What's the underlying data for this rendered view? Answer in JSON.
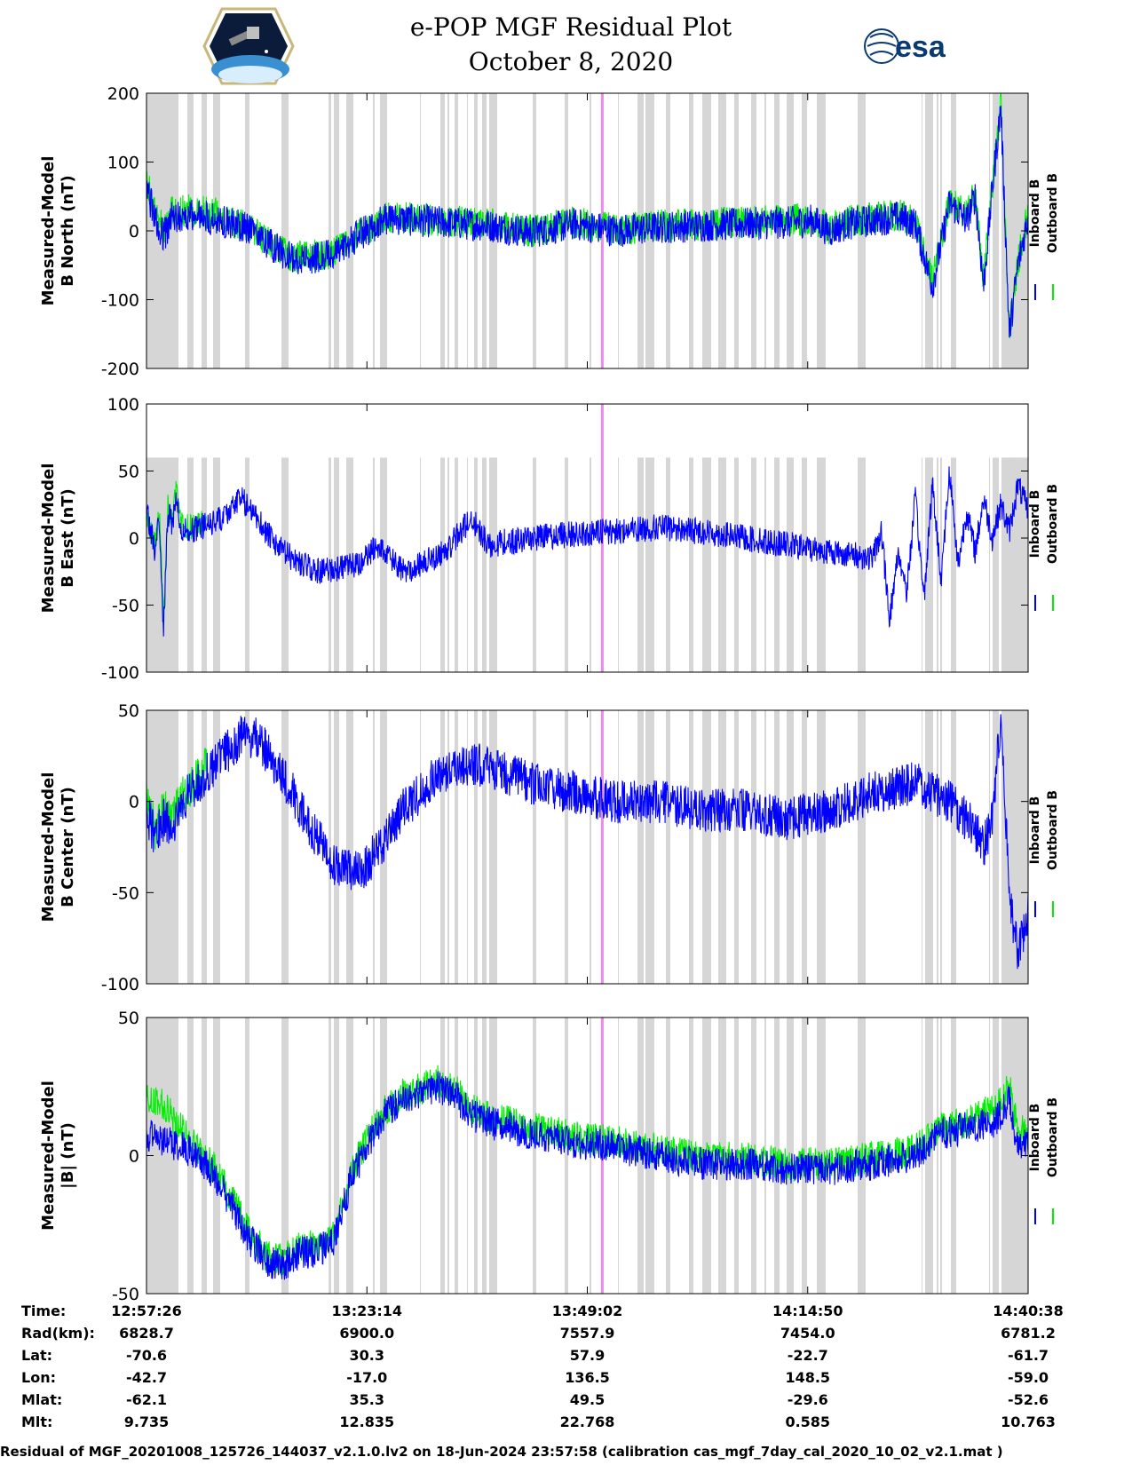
{
  "title": {
    "line1": "e-POP MGF Residual Plot",
    "line2": "October 8, 2020"
  },
  "logos": {
    "left": "cassiope-mission-logo",
    "right_text": "esa"
  },
  "colors": {
    "inboard": "#0000ff",
    "outboard": "#00ee00",
    "shade": "#d6d6d6",
    "marker": "#ee88ee",
    "axis": "#000000"
  },
  "footer": "Residual of MGF_20201008_125726_144037_v2.1.0.lv2 on 18-Jun-2024 23:57:58 (calibration cas_mgf_7day_cal_2020_10_02_v2.1.mat )",
  "info_table": {
    "row_labels": [
      "Time:",
      "Rad(km):",
      "Lat:",
      "Lon:",
      "Mlat:",
      "Mlt:"
    ],
    "columns": [
      [
        "12:57:26",
        "6828.7",
        "-70.6",
        "-42.7",
        "-62.1",
        "9.735"
      ],
      [
        "13:23:14",
        "6900.0",
        "30.3",
        "-17.0",
        "35.3",
        "12.835"
      ],
      [
        "13:49:02",
        "7557.9",
        "57.9",
        "136.5",
        "49.5",
        "22.768"
      ],
      [
        "14:14:50",
        "7454.0",
        "-22.7",
        "148.5",
        "-29.6",
        "0.585"
      ],
      [
        "14:40:38",
        "6781.2",
        "-61.7",
        "-59.0",
        "-52.6",
        "10.763"
      ]
    ]
  },
  "chart_data": [
    {
      "type": "line",
      "ylabel": [
        "Measured-Model",
        "B North (nT)"
      ],
      "ylim": [
        -200,
        200
      ],
      "yticks": [
        200,
        100,
        0,
        -100,
        -200
      ],
      "xlim_min": [
        0,
        103.2
      ],
      "legend": [
        "Inboard B",
        "Outboard B"
      ],
      "series": [
        {
          "name": "Inboard B",
          "amp": 6,
          "x": [
            0,
            1,
            2,
            3,
            5,
            8,
            10,
            12,
            15,
            17,
            20,
            22,
            25,
            28,
            32,
            35,
            40,
            45,
            48,
            50,
            55,
            60,
            65,
            70,
            75,
            78,
            80,
            82,
            85,
            88,
            90,
            92,
            94,
            96,
            97,
            98,
            99,
            100,
            101,
            102,
            103.2
          ],
          "y": [
            60,
            20,
            -10,
            20,
            22,
            18,
            10,
            5,
            -25,
            -40,
            -38,
            -35,
            -5,
            18,
            15,
            12,
            8,
            -2,
            5,
            10,
            0,
            5,
            8,
            10,
            12,
            15,
            0,
            10,
            15,
            20,
            10,
            -80,
            40,
            15,
            50,
            -80,
            60,
            180,
            -150,
            -50,
            20
          ]
        },
        {
          "name": "Outboard B",
          "amp": 6,
          "x": [
            0,
            1,
            2,
            3,
            5,
            8,
            10,
            12,
            15,
            17,
            20,
            22,
            25,
            28,
            32,
            35,
            40,
            45,
            48,
            50,
            55,
            60,
            65,
            70,
            75,
            78,
            80,
            82,
            85,
            88,
            90,
            92,
            94,
            96,
            97,
            98,
            99,
            100,
            101,
            102,
            103.2
          ],
          "y": [
            70,
            30,
            0,
            30,
            30,
            25,
            14,
            7,
            -23,
            -38,
            -36,
            -33,
            -3,
            20,
            17,
            14,
            10,
            0,
            7,
            12,
            2,
            7,
            10,
            12,
            15,
            18,
            3,
            13,
            18,
            23,
            13,
            -75,
            45,
            20,
            55,
            -75,
            65,
            185,
            -145,
            -45,
            25
          ]
        }
      ]
    },
    {
      "type": "line",
      "ylabel": [
        "Measured-Model",
        "B East (nT)"
      ],
      "ylim": [
        -100,
        100
      ],
      "yticks": [
        100,
        50,
        0,
        -50,
        -100
      ],
      "shade_top": 60,
      "legend": [
        "Inboard B",
        "Outboard B"
      ],
      "series": [
        {
          "name": "Inboard B",
          "amp": 5,
          "x": [
            0,
            1,
            1.5,
            2,
            2.5,
            3,
            3.5,
            4,
            5,
            7,
            9,
            11,
            13,
            15,
            17,
            20,
            25,
            27,
            30,
            32,
            35,
            38,
            40,
            45,
            50,
            55,
            60,
            65,
            70,
            75,
            80,
            85,
            86,
            87,
            88,
            89,
            90,
            91,
            92,
            93,
            94,
            95,
            96,
            97,
            98,
            99,
            100,
            101,
            102,
            103.2
          ],
          "y": [
            20,
            -10,
            15,
            -70,
            20,
            10,
            30,
            5,
            5,
            10,
            15,
            30,
            15,
            -5,
            -15,
            -25,
            -20,
            -5,
            -25,
            -20,
            -10,
            15,
            -5,
            0,
            3,
            5,
            8,
            5,
            0,
            -5,
            -10,
            -15,
            5,
            -60,
            -10,
            -40,
            30,
            -45,
            40,
            -30,
            50,
            -20,
            20,
            -10,
            30,
            0,
            25,
            5,
            40,
            20
          ]
        },
        {
          "name": "Outboard B",
          "amp": 5,
          "x": [
            0,
            1,
            1.5,
            2,
            2.5,
            3,
            3.5,
            4,
            5,
            7
          ],
          "y": [
            15,
            -5,
            20,
            -65,
            25,
            15,
            35,
            10,
            8,
            12
          ]
        }
      ]
    },
    {
      "type": "line",
      "ylabel": [
        "Measured-Model",
        "B Center (nT)"
      ],
      "ylim": [
        -100,
        50
      ],
      "yticks": [
        50,
        0,
        -50,
        -100
      ],
      "legend": [
        "Inboard B",
        "Outboard B"
      ],
      "series": [
        {
          "name": "Inboard B",
          "amp": 8,
          "x": [
            0,
            1,
            2,
            3,
            4,
            5,
            7,
            9,
            11,
            13,
            15,
            17,
            20,
            22,
            25,
            28,
            30,
            33,
            36,
            40,
            45,
            50,
            55,
            60,
            65,
            70,
            75,
            80,
            85,
            90,
            92,
            94,
            96,
            97,
            98,
            99,
            100,
            101,
            102,
            103.2
          ],
          "y": [
            -5,
            -20,
            -10,
            -15,
            -5,
            5,
            15,
            25,
            35,
            35,
            20,
            5,
            -20,
            -35,
            -40,
            -20,
            -5,
            10,
            20,
            20,
            10,
            5,
            0,
            0,
            -5,
            -5,
            -10,
            -5,
            5,
            10,
            5,
            0,
            -10,
            -15,
            -25,
            -10,
            45,
            -50,
            -85,
            -60
          ]
        },
        {
          "name": "Outboard B",
          "amp": 8,
          "x": [
            0,
            1,
            2,
            3,
            4,
            5,
            7
          ],
          "y": [
            0,
            -15,
            -5,
            -10,
            0,
            8,
            18
          ]
        }
      ]
    },
    {
      "type": "line",
      "ylabel": [
        "Measured-Model",
        "|B| (nT)"
      ],
      "ylim": [
        -50,
        50
      ],
      "yticks": [
        50,
        0,
        -50
      ],
      "legend": [
        "Inboard B",
        "Outboard B"
      ],
      "series": [
        {
          "name": "Inboard B",
          "amp": 6,
          "x": [
            0,
            2,
            4,
            6,
            8,
            10,
            12,
            14,
            16,
            18,
            20,
            22,
            24,
            26,
            28,
            30,
            32,
            34,
            36,
            38,
            40,
            45,
            50,
            55,
            60,
            65,
            70,
            75,
            80,
            85,
            90,
            93,
            96,
            99,
            100,
            101,
            102,
            103.2
          ],
          "y": [
            8,
            5,
            3,
            0,
            -8,
            -18,
            -30,
            -38,
            -40,
            -35,
            -35,
            -30,
            -8,
            5,
            15,
            20,
            22,
            25,
            22,
            15,
            12,
            8,
            5,
            3,
            0,
            -3,
            -3,
            -5,
            -5,
            -3,
            0,
            8,
            10,
            12,
            15,
            20,
            2,
            5
          ]
        },
        {
          "name": "Outboard B",
          "amp": 6,
          "x": [
            0,
            2,
            4,
            6,
            8,
            10,
            12,
            14,
            16,
            18,
            20,
            22,
            24,
            26,
            28,
            30,
            32,
            34,
            36,
            38,
            40,
            45,
            50,
            55,
            60,
            65,
            70,
            75,
            80,
            85,
            90,
            93,
            96,
            99,
            100,
            101,
            102,
            103.2
          ],
          "y": [
            22,
            18,
            10,
            3,
            -5,
            -16,
            -28,
            -36,
            -38,
            -33,
            -33,
            -28,
            -6,
            7,
            17,
            22,
            24,
            27,
            24,
            17,
            14,
            10,
            7,
            5,
            2,
            -1,
            -1,
            -3,
            -3,
            -1,
            2,
            10,
            12,
            17,
            20,
            25,
            8,
            10
          ]
        }
      ]
    }
  ]
}
